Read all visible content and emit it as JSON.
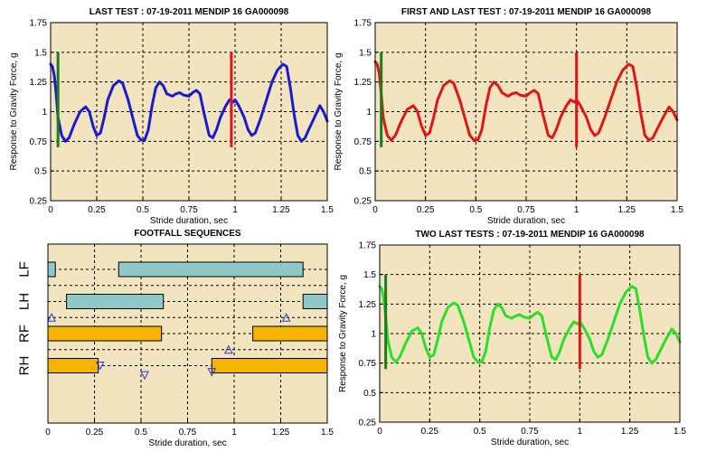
{
  "colors": {
    "plot_background": "#f2e4bf",
    "grid": "#000000",
    "blue_trace": "#1a1ad0",
    "red_trace": "#e01515",
    "green_trace": "#27e027",
    "green_marker": "#1e7a1e",
    "red_marker": "#e01515",
    "front_bar": "#8ec8c8",
    "hind_bar": "#f5b400",
    "triangle": "#2a3bd6"
  },
  "chart_data": [
    {
      "id": "last-test",
      "type": "line",
      "title": "LAST TEST : 07-19-2011 MENDIP 16 GA000098",
      "xlabel": "Stride duration, sec",
      "ylabel": "Response to Gravity Force, g",
      "xlim": [
        0,
        1.5
      ],
      "ylim": [
        0.25,
        1.75
      ],
      "xticks": [
        "0",
        "0.25",
        "0.5",
        "0.75",
        "1",
        "1.25",
        "1.5"
      ],
      "yticks": [
        "0.25",
        "0.5",
        "0.75",
        "1",
        "1.25",
        "1.5",
        "1.75"
      ],
      "grid": true,
      "series": [
        {
          "color": "blue_trace",
          "x": [
            0,
            0.01,
            0.02,
            0.03,
            0.04,
            0.06,
            0.08,
            0.1,
            0.13,
            0.16,
            0.19,
            0.21,
            0.23,
            0.25,
            0.27,
            0.29,
            0.31,
            0.34,
            0.37,
            0.39,
            0.42,
            0.45,
            0.47,
            0.49,
            0.51,
            0.53,
            0.55,
            0.57,
            0.59,
            0.61,
            0.63,
            0.66,
            0.68,
            0.7,
            0.72,
            0.75,
            0.77,
            0.79,
            0.81,
            0.83,
            0.86,
            0.88,
            0.9,
            0.92,
            0.95,
            0.97,
            0.99,
            1.0,
            1.02,
            1.05,
            1.07,
            1.09,
            1.11,
            1.14,
            1.17,
            1.2,
            1.23,
            1.26,
            1.28,
            1.3,
            1.32,
            1.34,
            1.36,
            1.38,
            1.4,
            1.43,
            1.46,
            1.48,
            1.5
          ],
          "y": [
            1.4,
            1.38,
            1.3,
            1.15,
            0.95,
            0.8,
            0.75,
            0.78,
            0.9,
            1.0,
            1.04,
            1.0,
            0.88,
            0.8,
            0.82,
            0.95,
            1.1,
            1.22,
            1.26,
            1.24,
            1.1,
            0.92,
            0.8,
            0.76,
            0.76,
            0.85,
            1.05,
            1.2,
            1.25,
            1.22,
            1.15,
            1.13,
            1.15,
            1.16,
            1.14,
            1.13,
            1.16,
            1.18,
            1.15,
            1.0,
            0.8,
            0.78,
            0.85,
            0.95,
            1.05,
            1.1,
            1.08,
            1.1,
            1.05,
            0.95,
            0.85,
            0.8,
            0.82,
            0.95,
            1.1,
            1.25,
            1.35,
            1.4,
            1.38,
            1.2,
            0.98,
            0.8,
            0.75,
            0.78,
            0.85,
            0.95,
            1.05,
            1.0,
            0.92
          ]
        }
      ],
      "markers": [
        {
          "x": 0.04,
          "y0": 0.7,
          "y1": 1.5,
          "color": "green_marker"
        },
        {
          "x": 0.98,
          "y0": 0.7,
          "y1": 1.5,
          "color": "red_marker"
        }
      ]
    },
    {
      "id": "first-and-last-test",
      "type": "line",
      "title": "FIRST AND LAST TEST : 07-19-2011 MENDIP 16 GA000098",
      "xlabel": "Stride duration, sec",
      "ylabel": "Response to Gravity Force, g",
      "xlim": [
        0,
        1.5
      ],
      "ylim": [
        0.25,
        1.75
      ],
      "xticks": [
        "0",
        "0.25",
        "0.5",
        "0.75",
        "1",
        "1.25",
        "1.5"
      ],
      "yticks": [
        "0.25",
        "0.5",
        "0.75",
        "1",
        "1.25",
        "1.5",
        "1.75"
      ],
      "grid": true,
      "series": [
        {
          "color": "red_trace",
          "x": [
            0,
            0.01,
            0.02,
            0.03,
            0.04,
            0.06,
            0.08,
            0.1,
            0.13,
            0.16,
            0.19,
            0.21,
            0.23,
            0.25,
            0.27,
            0.29,
            0.31,
            0.34,
            0.37,
            0.39,
            0.42,
            0.45,
            0.47,
            0.49,
            0.51,
            0.53,
            0.55,
            0.57,
            0.59,
            0.61,
            0.63,
            0.66,
            0.68,
            0.7,
            0.72,
            0.75,
            0.77,
            0.79,
            0.81,
            0.83,
            0.86,
            0.88,
            0.9,
            0.92,
            0.95,
            0.97,
            0.99,
            1.0,
            1.02,
            1.05,
            1.07,
            1.09,
            1.11,
            1.14,
            1.17,
            1.2,
            1.23,
            1.26,
            1.28,
            1.3,
            1.32,
            1.34,
            1.36,
            1.38,
            1.4,
            1.43,
            1.46,
            1.48,
            1.5
          ],
          "y": [
            1.42,
            1.4,
            1.32,
            1.15,
            0.95,
            0.8,
            0.76,
            0.8,
            0.92,
            1.02,
            1.05,
            1.0,
            0.88,
            0.8,
            0.82,
            0.95,
            1.1,
            1.22,
            1.26,
            1.24,
            1.1,
            0.92,
            0.8,
            0.76,
            0.76,
            0.85,
            1.05,
            1.2,
            1.25,
            1.22,
            1.16,
            1.13,
            1.15,
            1.16,
            1.14,
            1.13,
            1.16,
            1.18,
            1.15,
            1.0,
            0.8,
            0.78,
            0.85,
            0.95,
            1.05,
            1.1,
            1.08,
            1.1,
            1.05,
            0.95,
            0.85,
            0.8,
            0.82,
            0.95,
            1.1,
            1.25,
            1.35,
            1.4,
            1.38,
            1.2,
            0.98,
            0.8,
            0.76,
            0.78,
            0.85,
            0.95,
            1.04,
            1.0,
            0.93
          ]
        }
      ],
      "markers": [
        {
          "x": 0.03,
          "y0": 0.7,
          "y1": 1.5,
          "color": "green_marker"
        },
        {
          "x": 1.0,
          "y0": 0.7,
          "y1": 1.5,
          "color": "red_marker"
        }
      ]
    },
    {
      "id": "footfall-sequences",
      "type": "bar",
      "title": "FOOTFALL SEQUENCES",
      "xlabel": "Stride duration, sec",
      "xlim": [
        0,
        1.5
      ],
      "xticks": [
        "0",
        "0.25",
        "0.5",
        "0.75",
        "1",
        "1.25",
        "1.5"
      ],
      "categories": [
        "LF",
        "LH",
        "RF",
        "RH"
      ],
      "grid": true,
      "intervals": [
        {
          "leg": "LF",
          "start": 0.0,
          "end": 0.04,
          "color": "front_bar"
        },
        {
          "leg": "LF",
          "start": 0.38,
          "end": 1.37,
          "color": "front_bar"
        },
        {
          "leg": "LH",
          "start": 0.1,
          "end": 0.62,
          "color": "front_bar"
        },
        {
          "leg": "LH",
          "start": 1.37,
          "end": 1.5,
          "color": "front_bar"
        },
        {
          "leg": "RF",
          "start": 0.0,
          "end": 0.61,
          "color": "hind_bar"
        },
        {
          "leg": "RF",
          "start": 1.1,
          "end": 1.5,
          "color": "hind_bar"
        },
        {
          "leg": "RH",
          "start": 0.0,
          "end": 0.27,
          "color": "hind_bar"
        },
        {
          "leg": "RH",
          "start": 0.88,
          "end": 1.5,
          "color": "hind_bar"
        }
      ],
      "triangles": [
        {
          "x": 0.02,
          "lane": 1.5,
          "dir": "up"
        },
        {
          "x": 1.28,
          "lane": 1.5,
          "dir": "up"
        },
        {
          "x": 0.97,
          "lane": 2.5,
          "dir": "up"
        },
        {
          "x": 0.28,
          "lane": 3.0,
          "dir": "down"
        },
        {
          "x": 0.52,
          "lane": 3.3,
          "dir": "down"
        },
        {
          "x": 0.88,
          "lane": 3.2,
          "dir": "down"
        }
      ]
    },
    {
      "id": "two-last-tests",
      "type": "line",
      "title": "TWO LAST TESTS : 07-19-2011 MENDIP 16 GA000098",
      "xlabel": "Stride duration, sec",
      "ylabel": "Response to Gravity Force, g",
      "xlim": [
        0,
        1.5
      ],
      "ylim": [
        0.25,
        1.75
      ],
      "xticks": [
        "0",
        "0.25",
        "0.5",
        "0.75",
        "1",
        "1.25",
        "1.5"
      ],
      "yticks": [
        "0.25",
        "0.5",
        "0.75",
        "1",
        "1.25",
        "1.5",
        "1.75"
      ],
      "grid": true,
      "series": [
        {
          "color": "green_trace",
          "x": [
            0,
            0.01,
            0.02,
            0.03,
            0.04,
            0.06,
            0.08,
            0.1,
            0.13,
            0.16,
            0.19,
            0.21,
            0.23,
            0.25,
            0.27,
            0.29,
            0.31,
            0.34,
            0.37,
            0.39,
            0.42,
            0.45,
            0.47,
            0.49,
            0.51,
            0.53,
            0.55,
            0.57,
            0.59,
            0.61,
            0.63,
            0.66,
            0.68,
            0.7,
            0.72,
            0.75,
            0.77,
            0.79,
            0.81,
            0.83,
            0.86,
            0.88,
            0.9,
            0.92,
            0.95,
            0.97,
            0.99,
            1.0,
            1.02,
            1.05,
            1.07,
            1.09,
            1.11,
            1.14,
            1.17,
            1.2,
            1.23,
            1.26,
            1.28,
            1.3,
            1.32,
            1.34,
            1.36,
            1.38,
            1.4,
            1.43,
            1.46,
            1.48,
            1.5
          ],
          "y": [
            1.4,
            1.38,
            1.3,
            1.15,
            0.95,
            0.8,
            0.76,
            0.8,
            0.92,
            1.02,
            1.05,
            1.0,
            0.88,
            0.8,
            0.82,
            0.95,
            1.1,
            1.22,
            1.26,
            1.24,
            1.1,
            0.92,
            0.8,
            0.76,
            0.76,
            0.85,
            1.05,
            1.2,
            1.25,
            1.22,
            1.15,
            1.13,
            1.15,
            1.16,
            1.14,
            1.13,
            1.16,
            1.18,
            1.15,
            1.0,
            0.8,
            0.78,
            0.85,
            0.95,
            1.05,
            1.1,
            1.08,
            1.1,
            1.05,
            0.95,
            0.85,
            0.8,
            0.82,
            0.95,
            1.1,
            1.25,
            1.35,
            1.4,
            1.38,
            1.2,
            0.98,
            0.8,
            0.75,
            0.78,
            0.85,
            0.95,
            1.04,
            1.0,
            0.93
          ]
        }
      ],
      "markers": [
        {
          "x": 0.03,
          "y0": 0.7,
          "y1": 1.5,
          "color": "green_marker"
        },
        {
          "x": 1.0,
          "y0": 0.7,
          "y1": 1.5,
          "color": "red_marker"
        }
      ]
    }
  ]
}
